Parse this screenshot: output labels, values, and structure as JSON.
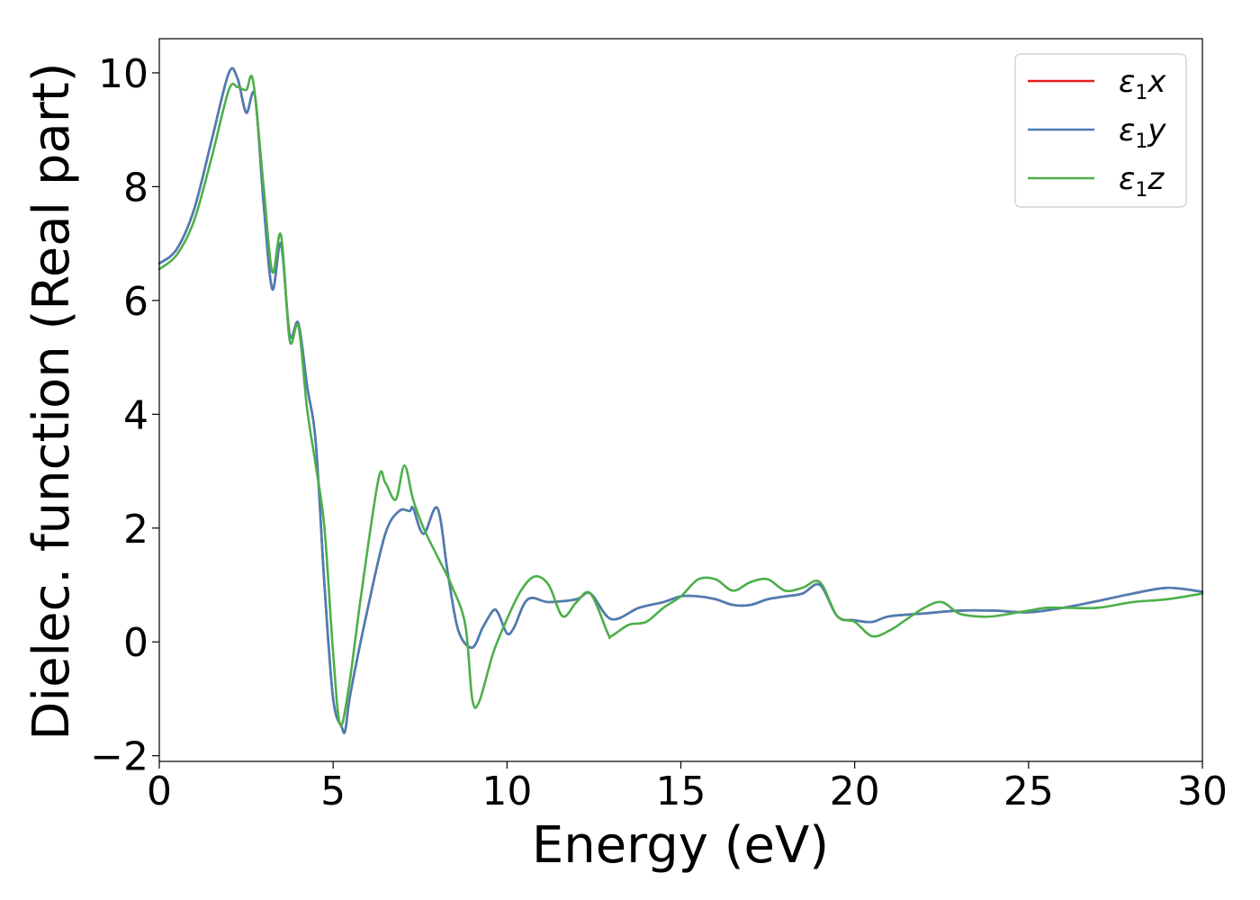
{
  "chart_data": {
    "type": "line",
    "title": "",
    "xlabel": "Energy (eV)",
    "ylabel": "Dielec. function (Real part)",
    "xlim": [
      0,
      30
    ],
    "ylim": [
      -2.1,
      10.6
    ],
    "xticks": [
      0,
      5,
      10,
      15,
      20,
      25,
      30
    ],
    "xtick_labels": [
      "0",
      "5",
      "10",
      "15",
      "20",
      "25",
      "30"
    ],
    "yticks": [
      -2,
      0,
      2,
      4,
      6,
      8,
      10
    ],
    "ytick_labels": [
      "−2",
      "0",
      "2",
      "4",
      "6",
      "8",
      "10"
    ],
    "grid": false,
    "legend_position": "top-right",
    "series": [
      {
        "name": "ε1x",
        "legend_base": "ε",
        "legend_sub": "1",
        "legend_var": "x",
        "color": "#e41a1c",
        "x": [
          0,
          0.5,
          1.0,
          1.5,
          2.0,
          2.25,
          2.5,
          2.75,
          3.0,
          3.25,
          3.5,
          3.75,
          4.0,
          4.25,
          4.5,
          4.75,
          5.0,
          5.25,
          5.35,
          5.5,
          6.0,
          6.5,
          6.9,
          7.2,
          7.3,
          7.6,
          8.0,
          8.3,
          8.6,
          9.0,
          9.3,
          9.6,
          9.75,
          10.0,
          10.2,
          10.6,
          11.2,
          12.0,
          12.4,
          13.0,
          13.8,
          14.5,
          15.0,
          15.5,
          16.0,
          16.5,
          17.0,
          17.5,
          18.0,
          18.5,
          19.0,
          19.5,
          20.0,
          20.5,
          21.0,
          22.0,
          23.0,
          24.0,
          25.0,
          26.0,
          27.0,
          28.0,
          29.0,
          30.0
        ],
        "y": [
          6.65,
          6.9,
          7.6,
          8.8,
          10.0,
          9.9,
          9.3,
          9.6,
          7.7,
          6.2,
          7.0,
          5.4,
          5.6,
          4.5,
          3.5,
          1.0,
          -1.0,
          -1.5,
          -1.55,
          -0.9,
          0.6,
          1.9,
          2.3,
          2.3,
          2.35,
          1.9,
          2.35,
          1.2,
          0.2,
          -0.1,
          0.25,
          0.55,
          0.5,
          0.15,
          0.25,
          0.75,
          0.7,
          0.75,
          0.85,
          0.4,
          0.6,
          0.7,
          0.8,
          0.8,
          0.75,
          0.65,
          0.65,
          0.75,
          0.8,
          0.85,
          1.0,
          0.45,
          0.38,
          0.35,
          0.45,
          0.5,
          0.55,
          0.55,
          0.52,
          0.6,
          0.72,
          0.85,
          0.95,
          0.88
        ]
      },
      {
        "name": "ε1y",
        "legend_base": "ε",
        "legend_sub": "1",
        "legend_var": "y",
        "color": "#4a7eb5",
        "x": [
          0,
          0.5,
          1.0,
          1.5,
          2.0,
          2.25,
          2.5,
          2.75,
          3.0,
          3.25,
          3.5,
          3.75,
          4.0,
          4.25,
          4.5,
          4.75,
          5.0,
          5.25,
          5.35,
          5.5,
          6.0,
          6.5,
          6.9,
          7.2,
          7.3,
          7.6,
          8.0,
          8.3,
          8.6,
          9.0,
          9.3,
          9.6,
          9.75,
          10.0,
          10.2,
          10.6,
          11.2,
          12.0,
          12.4,
          13.0,
          13.8,
          14.5,
          15.0,
          15.5,
          16.0,
          16.5,
          17.0,
          17.5,
          18.0,
          18.5,
          19.0,
          19.5,
          20.0,
          20.5,
          21.0,
          22.0,
          23.0,
          24.0,
          25.0,
          26.0,
          27.0,
          28.0,
          29.0,
          30.0
        ],
        "y": [
          6.65,
          6.9,
          7.6,
          8.8,
          10.0,
          9.9,
          9.3,
          9.6,
          7.7,
          6.2,
          7.0,
          5.4,
          5.6,
          4.5,
          3.5,
          1.0,
          -1.0,
          -1.5,
          -1.55,
          -0.9,
          0.6,
          1.9,
          2.3,
          2.3,
          2.35,
          1.9,
          2.35,
          1.2,
          0.2,
          -0.1,
          0.25,
          0.55,
          0.5,
          0.15,
          0.25,
          0.75,
          0.7,
          0.75,
          0.85,
          0.4,
          0.6,
          0.7,
          0.8,
          0.8,
          0.75,
          0.65,
          0.65,
          0.75,
          0.8,
          0.85,
          1.0,
          0.45,
          0.38,
          0.35,
          0.45,
          0.5,
          0.55,
          0.55,
          0.52,
          0.6,
          0.72,
          0.85,
          0.95,
          0.88
        ]
      },
      {
        "name": "ε1z",
        "legend_base": "ε",
        "legend_sub": "1",
        "legend_var": "z",
        "color": "#4daf4a",
        "x": [
          0,
          0.5,
          1.0,
          1.5,
          2.0,
          2.25,
          2.5,
          2.7,
          3.0,
          3.25,
          3.5,
          3.75,
          4.0,
          4.25,
          4.5,
          4.75,
          5.0,
          5.2,
          5.45,
          5.8,
          6.3,
          6.5,
          6.8,
          7.05,
          7.3,
          7.6,
          8.0,
          8.4,
          8.8,
          9.0,
          9.2,
          9.6,
          10.0,
          10.4,
          10.8,
          11.2,
          11.6,
          12.0,
          12.4,
          12.9,
          13.0,
          13.5,
          14.0,
          14.5,
          15.0,
          15.5,
          16.0,
          16.5,
          17.0,
          17.5,
          18.0,
          18.5,
          19.0,
          19.5,
          20.0,
          20.5,
          21.0,
          21.5,
          22.0,
          22.5,
          23.0,
          23.5,
          24.0,
          25.0,
          25.5,
          26.0,
          27.0,
          28.0,
          29.0,
          30.0
        ],
        "y": [
          6.55,
          6.8,
          7.4,
          8.5,
          9.7,
          9.75,
          9.7,
          9.85,
          8.0,
          6.5,
          7.15,
          5.3,
          5.55,
          4.1,
          3.1,
          2.0,
          -0.2,
          -1.45,
          -0.8,
          0.8,
          2.85,
          2.8,
          2.5,
          3.1,
          2.5,
          2.0,
          1.5,
          1.0,
          0.3,
          -1.0,
          -1.05,
          -0.2,
          0.4,
          0.9,
          1.15,
          1.0,
          0.45,
          0.7,
          0.85,
          0.15,
          0.1,
          0.3,
          0.35,
          0.6,
          0.8,
          1.1,
          1.1,
          0.9,
          1.05,
          1.1,
          0.9,
          0.95,
          1.05,
          0.45,
          0.35,
          0.1,
          0.2,
          0.4,
          0.6,
          0.7,
          0.5,
          0.45,
          0.45,
          0.55,
          0.6,
          0.6,
          0.6,
          0.7,
          0.75,
          0.85
        ]
      }
    ]
  }
}
